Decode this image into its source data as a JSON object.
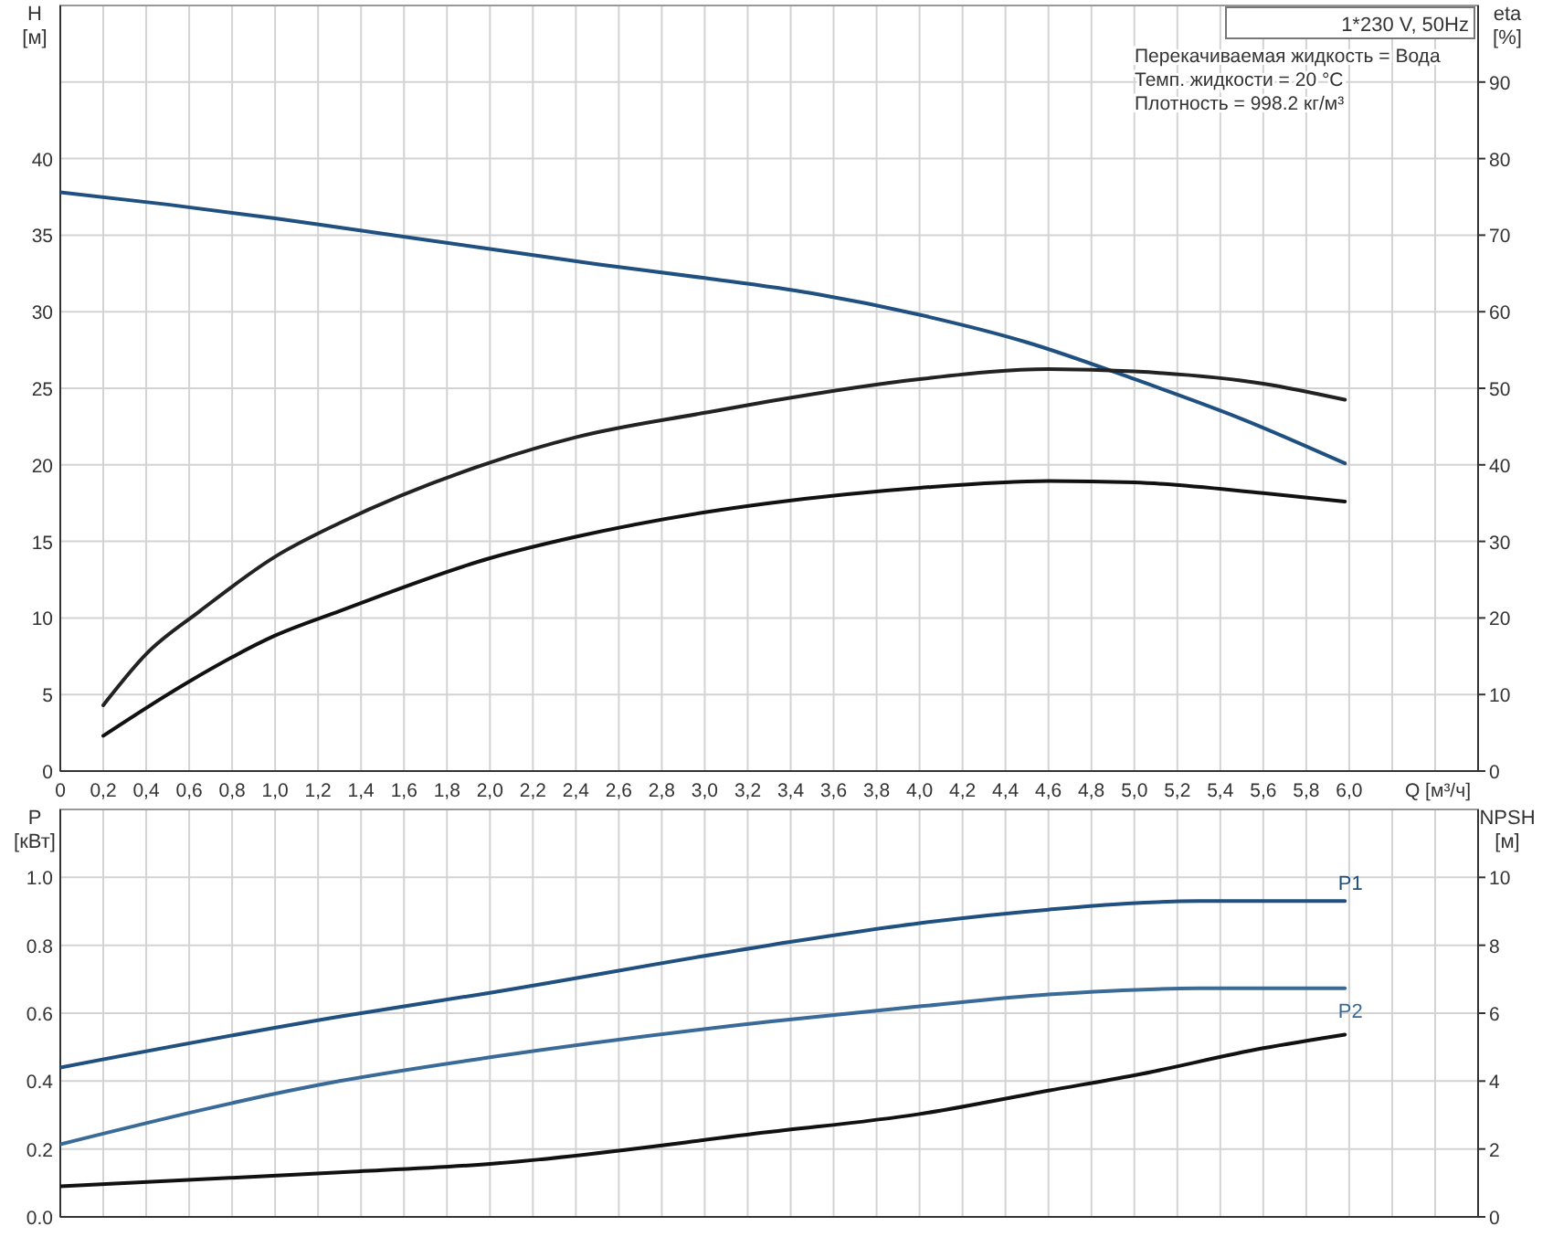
{
  "chart_data": [
    {
      "type": "line",
      "xlabel": "Q [м³/ч]",
      "ylabel": "H [м]",
      "y2label": "eta [%]",
      "annotations": [
        "1*230 V, 50Hz",
        "Перекачиваемая жидкость = Вода",
        "Темп. жидкости = 20 °C",
        "Плотность = 998.2 кг/м³"
      ],
      "xlim": [
        0,
        6.6
      ],
      "xticks": [
        0,
        {
          "value": 0.2,
          "label": "0,2"
        },
        {
          "value": 0.4,
          "label": "0,4"
        },
        {
          "value": 0.6,
          "label": "0,6"
        },
        {
          "value": 0.8,
          "label": "0,8"
        },
        {
          "value": 1.0,
          "label": "1,0"
        },
        {
          "value": 1.2,
          "label": "1,2"
        },
        {
          "value": 1.4,
          "label": "1,4"
        },
        {
          "value": 1.6,
          "label": "1,6"
        },
        {
          "value": 1.8,
          "label": "1,8"
        },
        {
          "value": 2.0,
          "label": "2,0"
        },
        {
          "value": 2.2,
          "label": "2,2"
        },
        {
          "value": 2.4,
          "label": "2,4"
        },
        {
          "value": 2.6,
          "label": "2,6"
        },
        {
          "value": 2.8,
          "label": "2,8"
        },
        {
          "value": 3.0,
          "label": "3,0"
        },
        {
          "value": 3.2,
          "label": "3,2"
        },
        {
          "value": 3.4,
          "label": "3,4"
        },
        {
          "value": 3.6,
          "label": "3,6"
        },
        {
          "value": 3.8,
          "label": "3,8"
        },
        {
          "value": 4.0,
          "label": "4,0"
        },
        {
          "value": 4.2,
          "label": "4,2"
        },
        {
          "value": 4.4,
          "label": "4,4"
        },
        {
          "value": 4.6,
          "label": "4,6"
        },
        {
          "value": 4.8,
          "label": "4,8"
        },
        {
          "value": 5.0,
          "label": "5,0"
        },
        {
          "value": 5.2,
          "label": "5,2"
        },
        {
          "value": 5.4,
          "label": "5,4"
        },
        {
          "value": 5.6,
          "label": "5,6"
        },
        {
          "value": 5.8,
          "label": "5,8"
        },
        {
          "value": 6.0,
          "label": "6,0"
        },
        {
          "value": 6.2,
          "label": null
        },
        {
          "value": 6.4,
          "label": null
        }
      ],
      "ylim": [
        0,
        50
      ],
      "yticks": [
        0,
        5,
        10,
        15,
        20,
        25,
        30,
        35,
        40,
        {
          "value": 45,
          "label": null
        }
      ],
      "y2lim": [
        0,
        100
      ],
      "y2ticks": [
        0,
        10,
        20,
        30,
        40,
        50,
        60,
        70,
        80,
        90
      ],
      "grid": true,
      "marker": "none",
      "line_style": "solid",
      "series": [
        {
          "color": "#1f5080",
          "x": [
            0,
            0.5,
            1.0,
            1.3,
            2.0,
            2.5,
            3.0,
            3.5,
            4.0,
            4.5,
            5.0,
            5.5,
            5.98
          ],
          "values": [
            37.8,
            37.0,
            36.1,
            35.5,
            34.1,
            33.1,
            32.2,
            31.2,
            29.8,
            28.0,
            25.6,
            23.0,
            20.1
          ]
        },
        {
          "color": "#222222",
          "axis": "y2",
          "x": [
            0.2,
            0.4,
            0.65,
            1.0,
            1.3,
            2.0,
            2.4,
            3.0,
            3.3,
            4.0,
            4.6,
            5.0,
            5.6,
            5.98
          ],
          "values": [
            8.6,
            15.3,
            20.9,
            28,
            32.4,
            40.3,
            43.6,
            46.8,
            48.3,
            51.2,
            52.5,
            52.2,
            50.6,
            48.5
          ]
        },
        {
          "color": "#111111",
          "axis": "y2",
          "x": [
            0.2,
            0.6,
            1.0,
            1.3,
            2.0,
            2.4,
            3.0,
            3.3,
            4.0,
            4.6,
            5.0,
            5.6,
            5.98
          ],
          "values": [
            4.6,
            11.7,
            17.7,
            20.9,
            27.8,
            30.6,
            33.8,
            35.0,
            37.0,
            37.9,
            37.7,
            36.3,
            35.2
          ]
        }
      ]
    },
    {
      "type": "line",
      "ylabel": "P [кВт]",
      "y2label": "NPSH [м]",
      "tick_labels": "y",
      "xlim": [
        0,
        6.6
      ],
      "xticks": [
        0,
        0.2,
        0.4,
        0.6,
        0.8,
        1.0,
        1.2,
        1.4,
        1.6,
        1.8,
        2.0,
        2.2,
        2.4,
        2.6,
        2.8,
        3.0,
        3.2,
        3.4,
        3.6,
        3.8,
        4.0,
        4.2,
        4.4,
        4.6,
        4.8,
        5.0,
        5.2,
        5.4,
        5.6,
        5.8,
        6.0,
        6.2,
        6.4
      ],
      "ylim": [
        0,
        1.2
      ],
      "yticks": [
        {
          "value": 0,
          "label": "0.0"
        },
        0.2,
        0.4,
        0.6,
        0.8,
        {
          "value": 1.0,
          "label": "1.0"
        },
        {
          "value": 1.2,
          "label": null
        }
      ],
      "y2lim": [
        0,
        12
      ],
      "y2ticks": [
        0,
        2,
        4,
        6,
        8,
        10
      ],
      "grid": true,
      "marker": "none",
      "line_style": "solid",
      "series": [
        {
          "name": "P1",
          "color": "#1f5080",
          "x": [
            0,
            1.3,
            2.0,
            3.3,
            4.0,
            4.6,
            5.3,
            5.98
          ],
          "values": [
            0.44,
            0.59,
            0.66,
            0.8,
            0.865,
            0.905,
            0.93,
            0.93
          ]
        },
        {
          "name": "P2",
          "color": "#3a6a98",
          "x": [
            0,
            1.3,
            2.0,
            3.3,
            4.0,
            4.6,
            5.3,
            5.98
          ],
          "values": [
            0.214,
            0.4,
            0.47,
            0.575,
            0.62,
            0.655,
            0.673,
            0.673
          ]
        },
        {
          "color": "#111111",
          "axis": "y2",
          "x": [
            0,
            1.3,
            2.0,
            3.3,
            4.0,
            4.6,
            5.0,
            5.6,
            5.98
          ],
          "values": [
            0.9,
            1.31,
            1.56,
            2.5,
            3.03,
            3.72,
            4.17,
            4.97,
            5.37
          ]
        }
      ]
    }
  ]
}
